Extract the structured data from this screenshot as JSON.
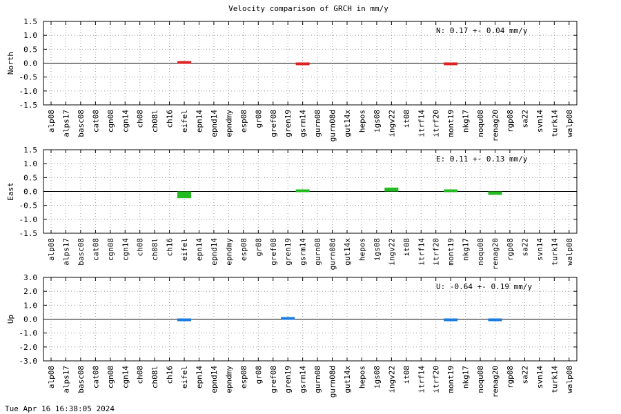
{
  "timestamp": "Tue Apr 16 16:38:05 2024",
  "chart_data": {
    "type": "bar",
    "title": "Velocity comparison of GRCH in mm/y",
    "categories": [
      "alp08",
      "alps17",
      "basc08",
      "cat08",
      "cgn08",
      "cgn14",
      "ch08",
      "ch08l",
      "ch16",
      "eifel",
      "epn14",
      "epnd14",
      "epndmy",
      "esp08",
      "gr08",
      "gref08",
      "gren19",
      "gsrm14",
      "gurn08",
      "gurn08d",
      "gut14x",
      "hepos",
      "igs08",
      "ingv22",
      "it08",
      "itrf14",
      "itrf20",
      "mont19",
      "nkg17",
      "noqu08",
      "renag20",
      "rgp08",
      "sa22",
      "svn14",
      "turk14",
      "walp08"
    ],
    "grid": true,
    "panels": [
      {
        "ylabel": "North",
        "ylim": [
          -1.5,
          1.5
        ],
        "yticks": [
          "1.5",
          "1.0",
          "0.5",
          "0.0",
          "-0.5",
          "-1.0",
          "-1.5"
        ],
        "ytick_values": [
          1.5,
          1.0,
          0.5,
          0.0,
          -0.5,
          -1.0,
          -1.5
        ],
        "color": "#dd2222",
        "annotation": "N:   0.17 +-  0.04 mm/y",
        "values": [
          null,
          null,
          null,
          null,
          null,
          null,
          null,
          null,
          null,
          0.02,
          null,
          null,
          null,
          null,
          null,
          null,
          null,
          -0.08,
          null,
          null,
          null,
          null,
          null,
          null,
          null,
          null,
          null,
          -0.04,
          null,
          null,
          null,
          null,
          null,
          null,
          null,
          null
        ]
      },
      {
        "ylabel": "East",
        "ylim": [
          -1.5,
          1.5
        ],
        "yticks": [
          "1.5",
          "1.0",
          "0.5",
          "0.0",
          "-0.5",
          "-1.0",
          "-1.5"
        ],
        "ytick_values": [
          1.5,
          1.0,
          0.5,
          0.0,
          -0.5,
          -1.0,
          -1.5
        ],
        "color": "#22bb22",
        "annotation": "E:   0.11 +-  0.13 mm/y",
        "values": [
          null,
          null,
          null,
          null,
          null,
          null,
          null,
          null,
          null,
          -0.24,
          null,
          null,
          null,
          null,
          null,
          null,
          null,
          0.01,
          null,
          null,
          null,
          null,
          null,
          0.14,
          null,
          null,
          null,
          0.01,
          null,
          null,
          -0.12,
          null,
          null,
          null,
          null,
          null
        ]
      },
      {
        "ylabel": "Up",
        "ylim": [
          -3.0,
          3.0
        ],
        "yticks": [
          "3.0",
          "2.0",
          "1.0",
          "0.0",
          "-1.0",
          "-2.0",
          "-3.0"
        ],
        "ytick_values": [
          3.0,
          2.0,
          1.0,
          0.0,
          -1.0,
          -2.0,
          -3.0
        ],
        "color": "#1a7be0",
        "annotation": "U:  -0.64 +-  0.19 mm/y",
        "values": [
          null,
          null,
          null,
          null,
          null,
          null,
          null,
          null,
          null,
          -0.12,
          null,
          null,
          null,
          null,
          null,
          null,
          0.18,
          null,
          null,
          null,
          null,
          null,
          null,
          null,
          null,
          null,
          null,
          -0.12,
          null,
          null,
          -0.12,
          null,
          null,
          null,
          null,
          null
        ]
      }
    ]
  }
}
